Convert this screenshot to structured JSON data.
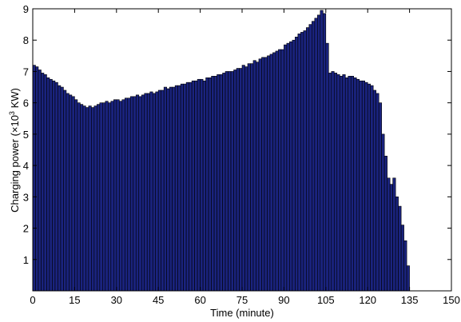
{
  "chart_data": {
    "type": "bar",
    "title": "",
    "xlabel": "Time (minute)",
    "ylabel": "Charging power (×10³ KW)",
    "ylabel_parts": {
      "pre": "Charging power (×10",
      "sup": "3",
      "post": " KW)"
    },
    "xlim": [
      0,
      150
    ],
    "ylim": [
      0,
      9
    ],
    "xticks": [
      0,
      15,
      30,
      45,
      60,
      75,
      90,
      105,
      120,
      135,
      150
    ],
    "yticks": [
      1,
      2,
      3,
      4,
      5,
      6,
      7,
      8,
      9
    ],
    "grid": false,
    "bar_color": "#1a237e",
    "x": [
      0,
      1,
      2,
      3,
      4,
      5,
      6,
      7,
      8,
      9,
      10,
      11,
      12,
      13,
      14,
      15,
      16,
      17,
      18,
      19,
      20,
      21,
      22,
      23,
      24,
      25,
      26,
      27,
      28,
      29,
      30,
      31,
      32,
      33,
      34,
      35,
      36,
      37,
      38,
      39,
      40,
      41,
      42,
      43,
      44,
      45,
      46,
      47,
      48,
      49,
      50,
      51,
      52,
      53,
      54,
      55,
      56,
      57,
      58,
      59,
      60,
      61,
      62,
      63,
      64,
      65,
      66,
      67,
      68,
      69,
      70,
      71,
      72,
      73,
      74,
      75,
      76,
      77,
      78,
      79,
      80,
      81,
      82,
      83,
      84,
      85,
      86,
      87,
      88,
      89,
      90,
      91,
      92,
      93,
      94,
      95,
      96,
      97,
      98,
      99,
      100,
      101,
      102,
      103,
      104,
      105,
      106,
      107,
      108,
      109,
      110,
      111,
      112,
      113,
      114,
      115,
      116,
      117,
      118,
      119,
      120,
      121,
      122,
      123,
      124,
      125,
      126,
      127,
      128,
      129,
      130,
      131,
      132,
      133,
      134
    ],
    "values": [
      7.2,
      7.15,
      7.05,
      6.95,
      6.9,
      6.8,
      6.75,
      6.7,
      6.65,
      6.55,
      6.5,
      6.4,
      6.3,
      6.25,
      6.2,
      6.1,
      6.0,
      5.95,
      5.9,
      5.85,
      5.9,
      5.85,
      5.9,
      5.95,
      6.0,
      6.0,
      6.05,
      6.0,
      6.05,
      6.1,
      6.1,
      6.05,
      6.1,
      6.15,
      6.15,
      6.2,
      6.2,
      6.25,
      6.2,
      6.25,
      6.3,
      6.3,
      6.35,
      6.3,
      6.35,
      6.4,
      6.4,
      6.5,
      6.45,
      6.5,
      6.5,
      6.55,
      6.55,
      6.6,
      6.6,
      6.65,
      6.65,
      6.7,
      6.7,
      6.75,
      6.75,
      6.7,
      6.8,
      6.8,
      6.85,
      6.85,
      6.9,
      6.9,
      6.95,
      7.0,
      7.0,
      7.0,
      7.05,
      7.1,
      7.1,
      7.2,
      7.15,
      7.25,
      7.25,
      7.35,
      7.3,
      7.4,
      7.45,
      7.45,
      7.5,
      7.55,
      7.6,
      7.65,
      7.7,
      7.7,
      7.85,
      7.9,
      7.95,
      8.0,
      8.1,
      8.2,
      8.25,
      8.3,
      8.4,
      8.5,
      8.6,
      8.7,
      8.8,
      8.95,
      8.85,
      7.9,
      6.95,
      7.0,
      6.95,
      6.9,
      6.85,
      6.9,
      6.8,
      6.85,
      6.85,
      6.8,
      6.75,
      6.7,
      6.7,
      6.65,
      6.6,
      6.55,
      6.4,
      6.3,
      6.0,
      5.0,
      4.3,
      3.6,
      3.4,
      3.6,
      3.0,
      2.7,
      2.1,
      1.6,
      0.8
    ]
  }
}
